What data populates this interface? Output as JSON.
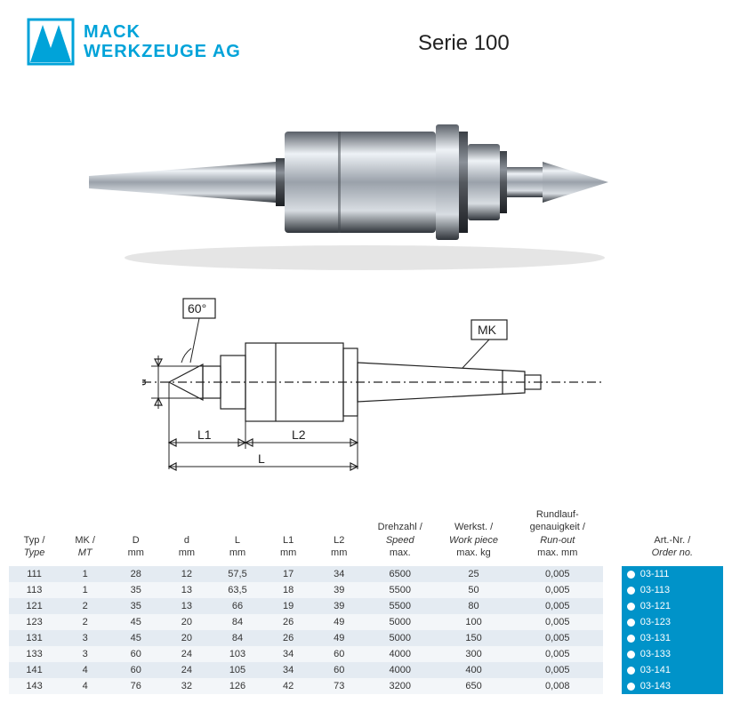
{
  "brand": {
    "line1": "MACK",
    "line2": "WERKZEUGE AG",
    "logo_color": "#00a3d9"
  },
  "title": "Serie 100",
  "diagram": {
    "angle_label": "60°",
    "d_label": "d",
    "L1_label": "L1",
    "L2_label": "L2",
    "L_label": "L",
    "mk_label": "MK",
    "line_color": "#222222",
    "body_fill": "#ffffff"
  },
  "product_colors": {
    "steel_light": "#d8dde2",
    "steel_mid": "#8d949d",
    "steel_dark": "#3f454c",
    "highlight": "#f0f3f7"
  },
  "table": {
    "header_color": "#333333",
    "row_odd_bg": "#e4ebf2",
    "row_even_bg": "#f3f6f9",
    "order_bg": "#0093c9",
    "order_fg": "#ffffff",
    "headers": {
      "typ": {
        "l1": "Typ /",
        "l2": "Type"
      },
      "mk": {
        "l1": "MK /",
        "l2": "MT"
      },
      "D": {
        "l1": "D",
        "l3": "mm"
      },
      "d": {
        "l1": "d",
        "l3": "mm"
      },
      "L": {
        "l1": "L",
        "l3": "mm"
      },
      "L1": {
        "l1": "L1",
        "l3": "mm"
      },
      "L2": {
        "l1": "L2",
        "l3": "mm"
      },
      "speed": {
        "l1": "Drehzahl /",
        "l2": "Speed",
        "l3": "max."
      },
      "work": {
        "l1": "Werkst. /",
        "l2": "Work piece",
        "l3": "max. kg"
      },
      "runout": {
        "l0": "Rundlauf-",
        "l1": "genauigkeit /",
        "l2": "Run-out",
        "l3": "max. mm"
      },
      "art": {
        "l1": "Art.-Nr. /",
        "l2": "Order no."
      }
    },
    "rows": [
      {
        "typ": "111",
        "mk": "1",
        "D": "28",
        "d": "12",
        "L": "57,5",
        "L1": "17",
        "L2": "34",
        "speed": "6500",
        "work": "25",
        "runout": "0,005",
        "art": "03-111"
      },
      {
        "typ": "113",
        "mk": "1",
        "D": "35",
        "d": "13",
        "L": "63,5",
        "L1": "18",
        "L2": "39",
        "speed": "5500",
        "work": "50",
        "runout": "0,005",
        "art": "03-113"
      },
      {
        "typ": "121",
        "mk": "2",
        "D": "35",
        "d": "13",
        "L": "66",
        "L1": "19",
        "L2": "39",
        "speed": "5500",
        "work": "80",
        "runout": "0,005",
        "art": "03-121"
      },
      {
        "typ": "123",
        "mk": "2",
        "D": "45",
        "d": "20",
        "L": "84",
        "L1": "26",
        "L2": "49",
        "speed": "5000",
        "work": "100",
        "runout": "0,005",
        "art": "03-123"
      },
      {
        "typ": "131",
        "mk": "3",
        "D": "45",
        "d": "20",
        "L": "84",
        "L1": "26",
        "L2": "49",
        "speed": "5000",
        "work": "150",
        "runout": "0,005",
        "art": "03-131"
      },
      {
        "typ": "133",
        "mk": "3",
        "D": "60",
        "d": "24",
        "L": "103",
        "L1": "34",
        "L2": "60",
        "speed": "4000",
        "work": "300",
        "runout": "0,005",
        "art": "03-133"
      },
      {
        "typ": "141",
        "mk": "4",
        "D": "60",
        "d": "24",
        "L": "105",
        "L1": "34",
        "L2": "60",
        "speed": "4000",
        "work": "400",
        "runout": "0,005",
        "art": "03-141"
      },
      {
        "typ": "143",
        "mk": "4",
        "D": "76",
        "d": "32",
        "L": "126",
        "L1": "42",
        "L2": "73",
        "speed": "3200",
        "work": "650",
        "runout": "0,008",
        "art": "03-143"
      }
    ]
  }
}
